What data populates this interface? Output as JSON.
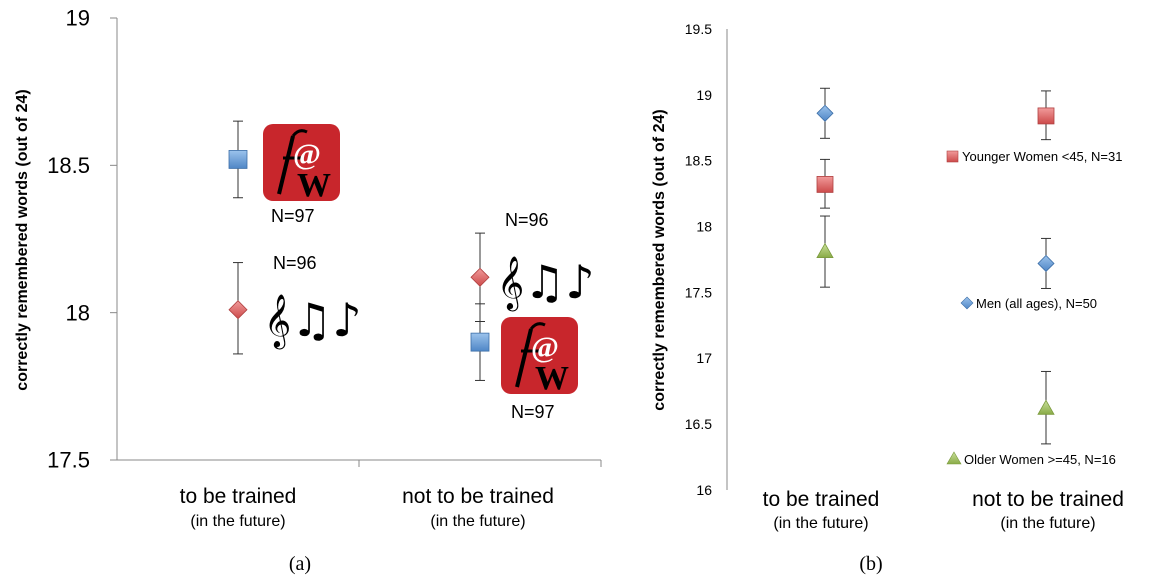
{
  "chart_data": [
    {
      "type": "scatter",
      "panel_label": "(a)",
      "ylabel": "correctly remembered words (out of 24)",
      "ylim": [
        17.5,
        19
      ],
      "yticks": [
        "17.5",
        "18",
        "18.5",
        "19"
      ],
      "categories": [
        {
          "main": "to be trained",
          "sub": "(in the future)"
        },
        {
          "main": "not to be trained",
          "sub": "(in the future)"
        }
      ],
      "series": [
        {
          "color": "#5b9bd5",
          "marker": "square",
          "icon": "fw-logo-icon",
          "n_label": "N=97",
          "values": [
            18.52,
            17.9
          ],
          "err_low": [
            18.39,
            17.77
          ],
          "err_high": [
            18.65,
            18.03
          ]
        },
        {
          "color": "#e06666",
          "marker": "diamond",
          "icon": "music-notes-icon",
          "n_label": "N=96",
          "values": [
            18.01,
            18.12
          ],
          "err_low": [
            17.86,
            17.97
          ],
          "err_high": [
            18.17,
            18.27
          ]
        }
      ]
    },
    {
      "type": "scatter",
      "panel_label": "(b)",
      "ylabel": "correctly remembered words (out of 24)",
      "ylim": [
        16,
        19.5
      ],
      "yticks": [
        "16",
        "16.5",
        "17",
        "17.5",
        "18",
        "18.5",
        "19",
        "19.5"
      ],
      "categories": [
        {
          "main": "to be trained",
          "sub": "(in the future)"
        },
        {
          "main": "not to be trained",
          "sub": "(in the future)"
        }
      ],
      "series": [
        {
          "name": "Younger Women <45, N=31",
          "color": "#e06666",
          "marker": "square",
          "values": [
            18.32,
            18.84
          ],
          "err_low": [
            18.14,
            18.66
          ],
          "err_high": [
            18.51,
            19.03
          ]
        },
        {
          "name": "Men (all ages), N=50",
          "color": "#5b9bd5",
          "marker": "diamond",
          "values": [
            18.86,
            17.72
          ],
          "err_low": [
            18.67,
            17.53
          ],
          "err_high": [
            19.05,
            17.91
          ]
        },
        {
          "name": "Older Women >=45, N=16",
          "color": "#9bbb59",
          "marker": "triangle",
          "values": [
            17.81,
            16.62
          ],
          "err_low": [
            17.54,
            16.35
          ],
          "err_high": [
            18.08,
            16.9
          ]
        }
      ]
    }
  ]
}
